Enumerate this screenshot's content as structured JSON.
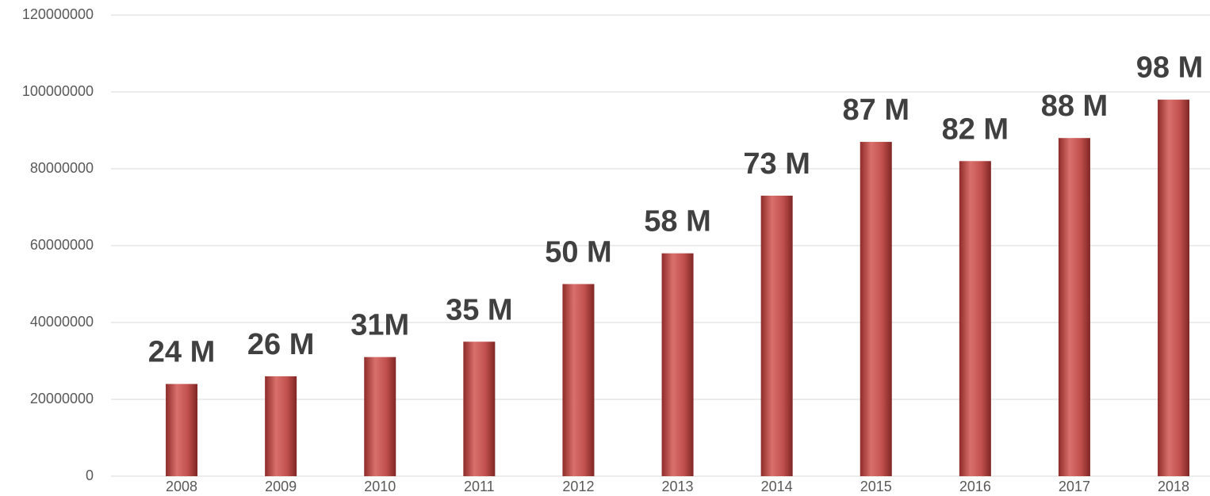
{
  "chart_data": {
    "type": "bar",
    "categories": [
      "2008",
      "2009",
      "2010",
      "2011",
      "2012",
      "2013",
      "2014",
      "2015",
      "2016",
      "2017",
      "2018"
    ],
    "values": [
      24000000,
      26000000,
      31000000,
      35000000,
      50000000,
      58000000,
      73000000,
      87000000,
      82000000,
      88000000,
      98000000
    ],
    "value_labels": [
      "24 M",
      "26 M",
      "31M",
      "35 M",
      "50 M",
      "58 M",
      "73 M",
      "87 M",
      "82 M",
      "88 M",
      "98 M"
    ],
    "color": "#c0504d",
    "ylim": [
      0,
      120000000
    ],
    "yticks": [
      0,
      20000000,
      40000000,
      60000000,
      80000000,
      100000000,
      120000000
    ],
    "grid": true
  }
}
